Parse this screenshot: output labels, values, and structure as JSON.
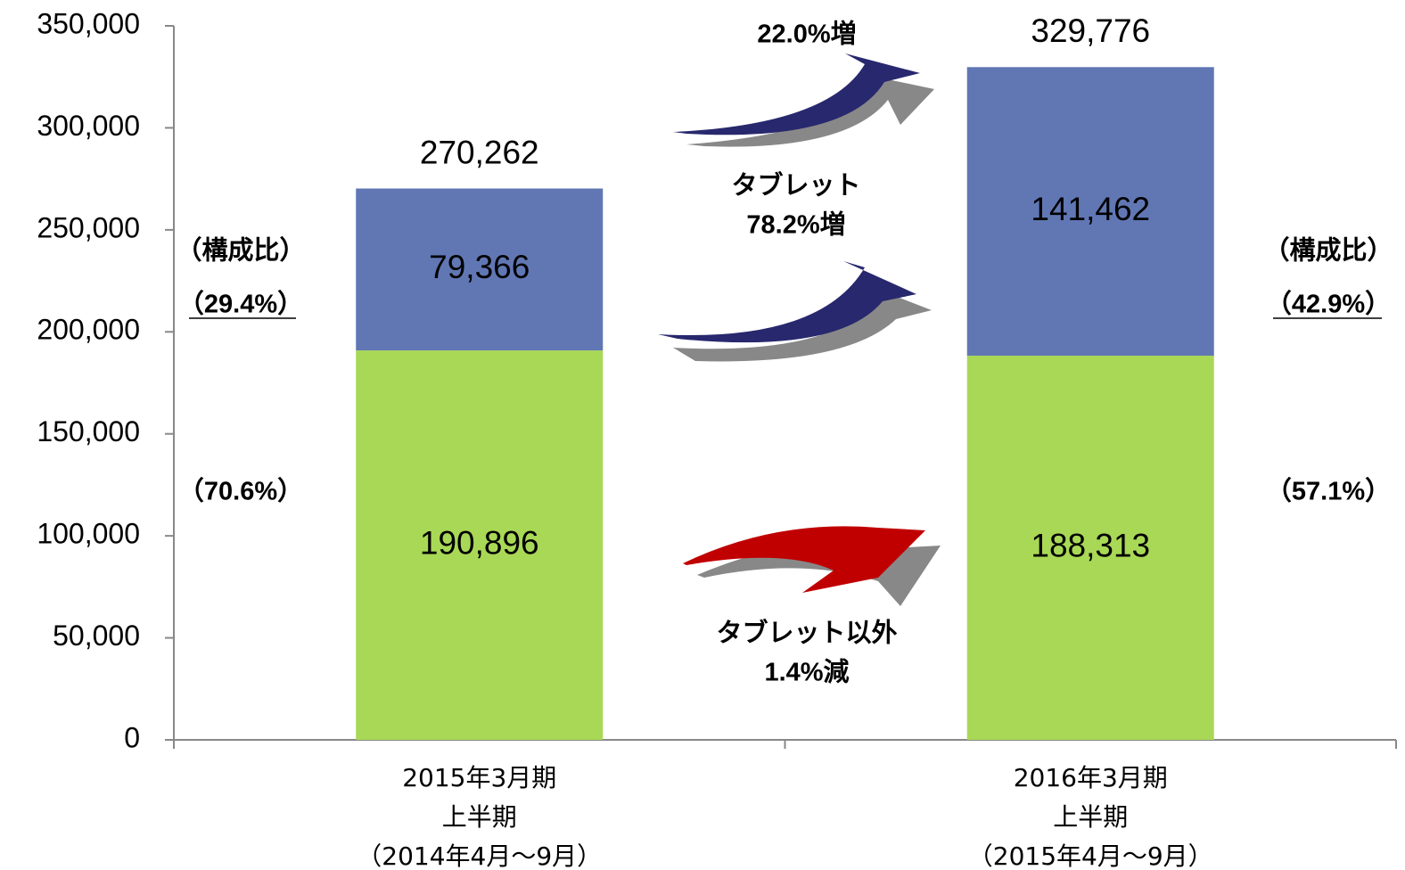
{
  "chart_data": {
    "type": "stacked_bar",
    "categories": [
      [
        "2015年3月期",
        "上半期",
        "（2014年4月～9月）"
      ],
      [
        "2016年3月期",
        "上半期",
        "（2015年4月～9月）"
      ]
    ],
    "series": [
      {
        "color": "#a9d856",
        "values": [
          190896,
          188313
        ],
        "value_labels": [
          "190,896",
          "188,313"
        ]
      },
      {
        "color": "#6177b4",
        "values": [
          79366,
          141462
        ],
        "value_labels": [
          "79,366",
          "141,462"
        ]
      }
    ],
    "totals": [
      270262,
      329776
    ],
    "total_labels": [
      "270,262",
      "329,776"
    ],
    "ylim": [
      0,
      350000
    ],
    "yticks": [
      0,
      {
        "value": 50000,
        "label": "50,000"
      },
      {
        "value": 100000,
        "label": "100,000"
      },
      {
        "value": 150000,
        "label": "150,000"
      },
      {
        "value": 200000,
        "label": "200,000"
      },
      {
        "value": 250000,
        "label": "250,000"
      },
      {
        "value": 300000,
        "label": "300,000"
      },
      {
        "value": 350000,
        "label": "350,000"
      }
    ],
    "annotations": [
      [
        "22.0%増"
      ],
      [
        "タブレット",
        "78.2%増"
      ],
      [
        "タブレット以外",
        "1.4%減"
      ],
      [
        "（構成比）"
      ],
      [
        "（29.4%）"
      ],
      [
        "（70.6%）"
      ],
      [
        "（構成比）"
      ],
      [
        "（42.9%）"
      ],
      [
        "（57.1%）"
      ]
    ]
  }
}
